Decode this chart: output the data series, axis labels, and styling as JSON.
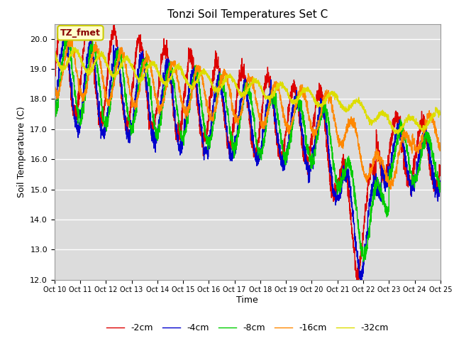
{
  "title": "Tonzi Soil Temperatures Set C",
  "xlabel": "Time",
  "ylabel": "Soil Temperature (C)",
  "ylim": [
    12.0,
    20.5
  ],
  "bg_color": "#dcdcdc",
  "annotation_text": "TZ_fmet",
  "annotation_bg": "#ffffcc",
  "annotation_border": "#cccc00",
  "series_colors": [
    "#dd0000",
    "#0000cc",
    "#00cc00",
    "#ff8800",
    "#dddd00"
  ],
  "series_labels": [
    "-2cm",
    "-4cm",
    "-8cm",
    "-16cm",
    "-32cm"
  ],
  "x_tick_labels": [
    "Oct 10",
    "Oct 11",
    "Oct 12",
    "Oct 13",
    "Oct 14",
    "Oct 15",
    "Oct 16",
    "Oct 17",
    "Oct 18",
    "Oct 19",
    "Oct 20",
    "Oct 21",
    "Oct 22",
    "Oct 23",
    "Oct 24",
    "Oct 25"
  ],
  "ytick_labels": [
    "12.0",
    "13.0",
    "14.0",
    "15.0",
    "16.0",
    "17.0",
    "18.0",
    "19.0",
    "20.0"
  ]
}
